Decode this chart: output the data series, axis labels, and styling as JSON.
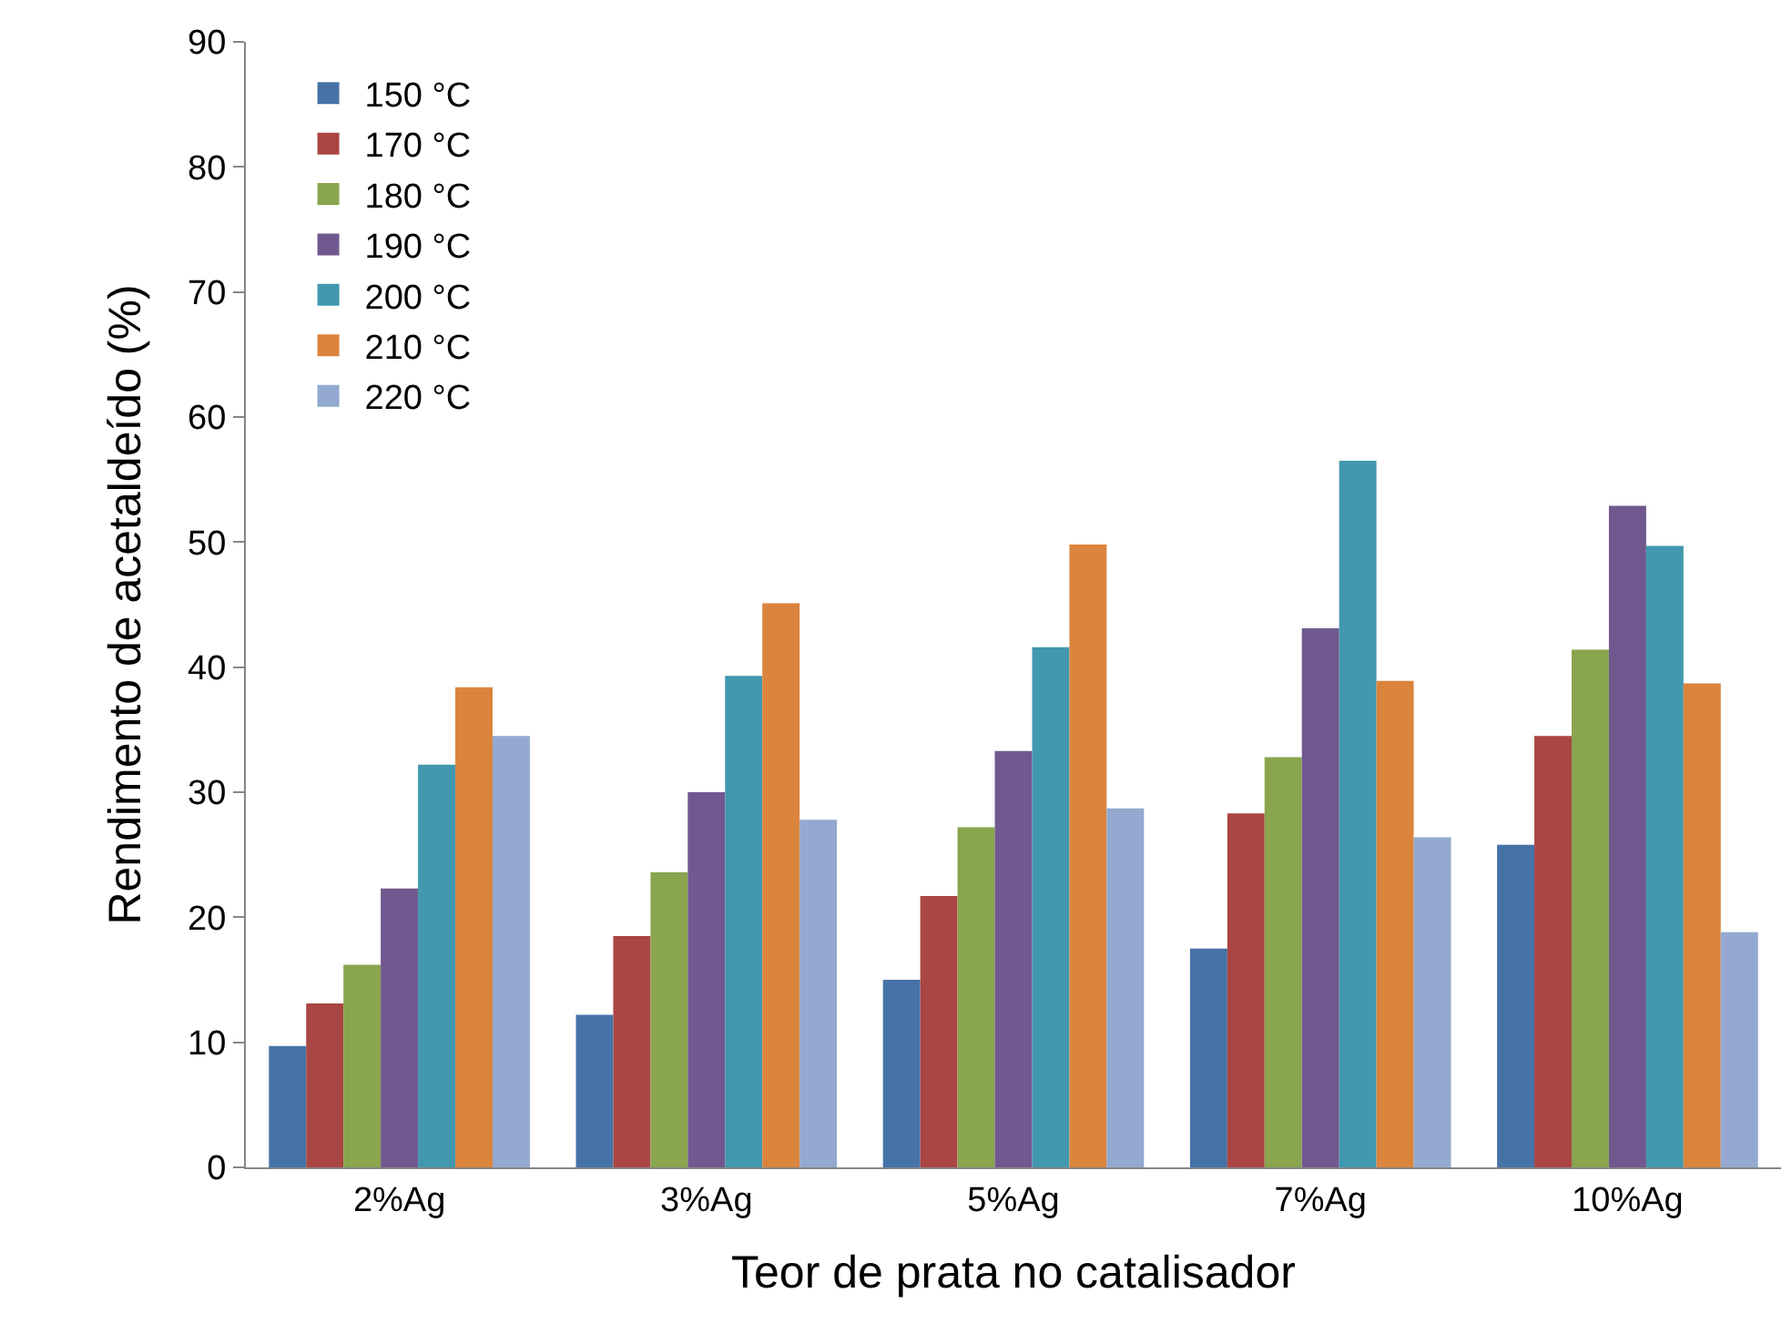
{
  "chart_data": {
    "type": "bar",
    "xlabel": "Teor de prata no catalisador",
    "ylabel": "Rendimento de acetaldeído (%)",
    "categories": [
      "2%Ag",
      "3%Ag",
      "5%Ag",
      "7%Ag",
      "10%Ag"
    ],
    "series": [
      {
        "name": "150 °C",
        "color": "#4572a7",
        "values": [
          9.7,
          12.2,
          15.0,
          17.5,
          25.8
        ]
      },
      {
        "name": "170 °C",
        "color": "#aa4643",
        "values": [
          13.1,
          18.5,
          21.7,
          28.3,
          34.5
        ]
      },
      {
        "name": "180 °C",
        "color": "#89a54e",
        "values": [
          16.2,
          23.6,
          27.2,
          32.8,
          41.4
        ]
      },
      {
        "name": "190 °C",
        "color": "#71588f",
        "values": [
          22.3,
          30.0,
          33.3,
          43.1,
          52.9
        ]
      },
      {
        "name": "200 °C",
        "color": "#4198af",
        "values": [
          32.2,
          39.3,
          41.6,
          56.5,
          49.7
        ]
      },
      {
        "name": "210 °C",
        "color": "#db843d",
        "values": [
          38.4,
          45.1,
          49.8,
          38.9,
          38.7
        ]
      },
      {
        "name": "220 °C",
        "color": "#93a9cf",
        "values": [
          34.5,
          27.8,
          28.7,
          26.4,
          18.8
        ]
      }
    ],
    "ylim": [
      0,
      90
    ],
    "yticks": [
      0,
      10,
      20,
      30,
      40,
      50,
      60,
      70,
      80,
      90
    ],
    "grid": false,
    "legend": "top left"
  }
}
